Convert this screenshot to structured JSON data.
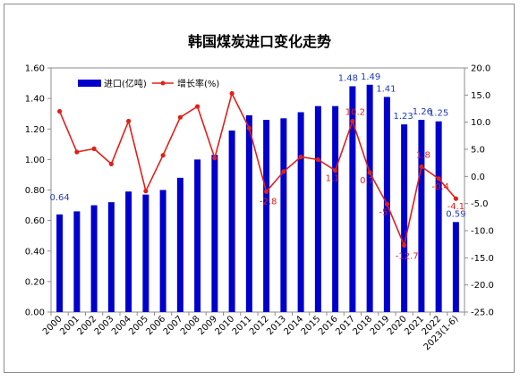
{
  "chart_data": {
    "type": "bar",
    "title": "韩国煤炭进口变化走势",
    "categories": [
      "2000",
      "2001",
      "2002",
      "2003",
      "2004",
      "2005",
      "2006",
      "2007",
      "2008",
      "2009",
      "2010",
      "2011",
      "2012",
      "2013",
      "2014",
      "2015",
      "2016",
      "2017",
      "2018",
      "2019",
      "2020",
      "2021",
      "2022",
      "2023(1-6)"
    ],
    "series": [
      {
        "name": "进口(亿吨)",
        "type": "bar",
        "axis": "left",
        "color": "#0000cc",
        "values": [
          0.64,
          0.66,
          0.7,
          0.72,
          0.79,
          0.77,
          0.8,
          0.88,
          1.0,
          1.03,
          1.19,
          1.29,
          1.26,
          1.27,
          1.31,
          1.35,
          1.35,
          1.48,
          1.49,
          1.41,
          1.23,
          1.26,
          1.25,
          0.59
        ],
        "labels": [
          "0.64",
          "",
          "",
          "",
          "",
          "",
          "",
          "",
          "",
          "",
          "",
          "",
          "",
          "",
          "",
          "",
          "",
          "1.48",
          "1.49",
          "1.41",
          "1.23",
          "1.26",
          "1.25",
          "0.59"
        ]
      },
      {
        "name": "增长率(%)",
        "type": "line",
        "axis": "right",
        "color": "#e0201a",
        "values": [
          12.0,
          4.5,
          5.1,
          2.3,
          10.2,
          -2.7,
          3.9,
          10.9,
          12.9,
          3.4,
          15.3,
          8.9,
          -2.8,
          0.9,
          3.6,
          3.1,
          1.1,
          10.2,
          0.7,
          -5.1,
          -12.7,
          1.8,
          -0.4,
          -4.1
        ],
        "labels": [
          "",
          "",
          "",
          "",
          "",
          "",
          "",
          "",
          "",
          "",
          "",
          "",
          "-2.8",
          "",
          "",
          "",
          "1.1",
          "10.2",
          "0.7",
          "-5",
          "-12.7",
          "1.8",
          "-0.4",
          "-4.1"
        ]
      }
    ],
    "y_left": {
      "min": 0,
      "max": 1.6,
      "step": 0.2,
      "ticks": [
        "0.00",
        "0.20",
        "0.40",
        "0.60",
        "0.80",
        "1.00",
        "1.20",
        "1.40",
        "1.60"
      ]
    },
    "y_right": {
      "min": -25,
      "max": 20,
      "step": 5,
      "ticks": [
        "-25.0",
        "-20.0",
        "-15.0",
        "-10.0",
        "-5.0",
        "0.0",
        "5.0",
        "10.0",
        "15.0",
        "20.0"
      ]
    },
    "grid": false,
    "legend": "top-left"
  }
}
